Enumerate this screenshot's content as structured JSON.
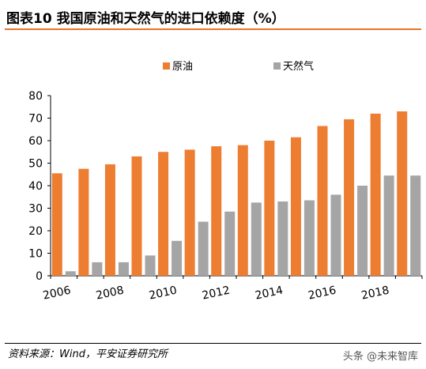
{
  "header": {
    "title": "图表10   我国原油和天然气的进口依赖度（%）"
  },
  "chart_data": {
    "type": "bar",
    "categories": [
      "2006",
      "2007",
      "2008",
      "2009",
      "2010",
      "2011",
      "2012",
      "2013",
      "2014",
      "2015",
      "2016",
      "2017",
      "2018",
      "2019"
    ],
    "x_tick_labels": [
      "2006",
      "2008",
      "2010",
      "2012",
      "2014",
      "2016",
      "2018"
    ],
    "series": [
      {
        "name": "原油",
        "color": "#ed7d31",
        "values": [
          45.5,
          47.5,
          49.5,
          53,
          55,
          56,
          57.5,
          58,
          60,
          61.5,
          66.5,
          69.5,
          72,
          73
        ]
      },
      {
        "name": "天然气",
        "color": "#a5a5a5",
        "values": [
          2,
          6,
          6,
          9,
          15.5,
          24,
          28.5,
          32.5,
          33,
          33.5,
          36,
          40,
          44.5,
          44.5
        ]
      }
    ],
    "ylim": [
      0,
      80
    ],
    "yticks": [
      0,
      10,
      20,
      30,
      40,
      50,
      60,
      70,
      80
    ],
    "legend": "top-center",
    "grid": false
  },
  "footer": {
    "source": "资料来源：Wind，平安证券研究所",
    "watermark": "头条 @未来智库"
  }
}
